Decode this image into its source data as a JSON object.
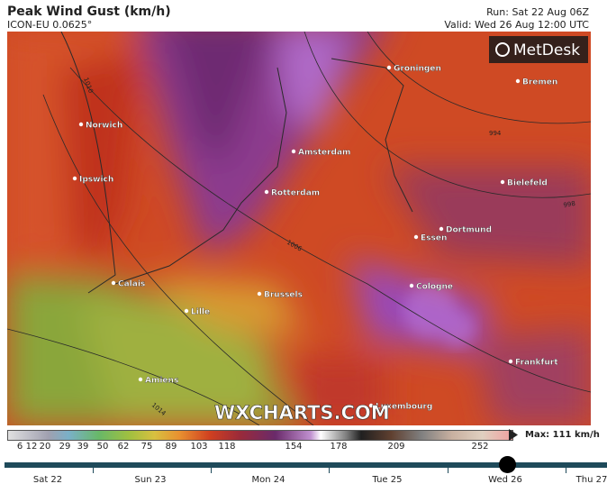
{
  "header": {
    "title": "Peak Wind Gust (km/h)",
    "model": "ICON-EU 0.0625°",
    "run": "Run: Sat 22 Aug 06Z",
    "valid": "Valid: Wed 26 Aug 12:00 UTC"
  },
  "logo": "MetDesk",
  "watermark": "WXCHARTS.COM",
  "cities": [
    "Groningen",
    "Bremen",
    "Norwich",
    "Amsterdam",
    "Ipswich",
    "Bielefeld",
    "Rotterdam",
    "Dortmund",
    "Essen",
    "Calais",
    "Cologne",
    "Brussels",
    "Lille",
    "Frankfurt",
    "Amiens",
    "Luxembourg"
  ],
  "isobars": [
    "1010",
    "994",
    "998",
    "1006",
    "1014"
  ],
  "legend": {
    "ticks": [
      6,
      12,
      20,
      29,
      39,
      50,
      62,
      75,
      89,
      103,
      118,
      154,
      178,
      209,
      252
    ],
    "max": "Max: 111 km/h"
  },
  "timeline": {
    "days": [
      "Sat 22",
      "Sun 23",
      "Mon 24",
      "Tue 25",
      "Wed 26",
      "Thu 27"
    ]
  }
}
